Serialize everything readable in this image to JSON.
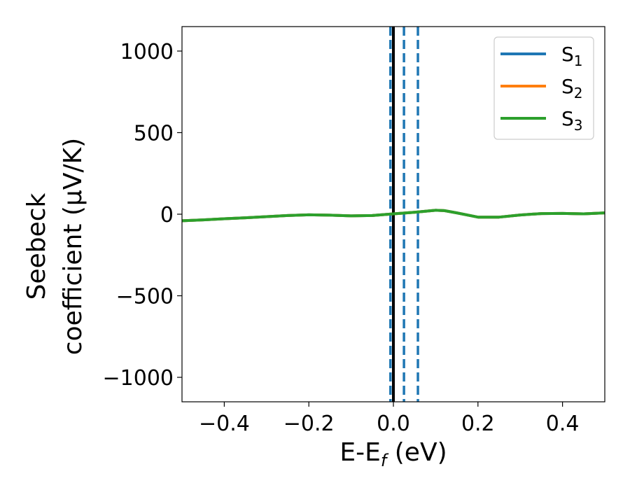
{
  "chart_data": {
    "type": "line",
    "title": "",
    "xlabel": "E-E_f (eV)",
    "xlabel_parts": {
      "main": "E-E",
      "sub": "f",
      "rest": " (eV)"
    },
    "ylabel": "Seebeck coefficient (μV/K)",
    "ylabel_lines": [
      "Seebeck",
      "coefficient  (μV/K)"
    ],
    "xlim": [
      -0.5,
      0.5
    ],
    "ylim": [
      -1150,
      1150
    ],
    "xticks": [
      -0.4,
      -0.2,
      0.0,
      0.2,
      0.4
    ],
    "xtick_labels": [
      "−0.4",
      "−0.2",
      "0.0",
      "0.2",
      "0.4"
    ],
    "yticks": [
      -1000,
      -500,
      0,
      500,
      1000
    ],
    "ytick_labels": [
      "−1000",
      "−500",
      "0",
      "500",
      "1000"
    ],
    "grid": false,
    "legend_position": "top-right",
    "series": [
      {
        "name": "S_1",
        "label_main": "S",
        "label_sub": "1",
        "color": "#1f77b4",
        "x": [
          -0.5,
          -0.45,
          -0.4,
          -0.35,
          -0.3,
          -0.25,
          -0.2,
          -0.15,
          -0.1,
          -0.05,
          0.0,
          0.05,
          0.1,
          0.12,
          0.15,
          0.2,
          0.25,
          0.3,
          0.35,
          0.4,
          0.45,
          0.5
        ],
        "y": [
          -40,
          -35,
          -28,
          -22,
          -15,
          -8,
          -4,
          -6,
          -10,
          -8,
          2,
          12,
          24,
          22,
          8,
          -18,
          -18,
          -5,
          4,
          5,
          2,
          8
        ]
      },
      {
        "name": "S_2",
        "label_main": "S",
        "label_sub": "2",
        "color": "#ff7f0e",
        "x": [
          -0.5,
          -0.45,
          -0.4,
          -0.35,
          -0.3,
          -0.25,
          -0.2,
          -0.15,
          -0.1,
          -0.05,
          0.0,
          0.05,
          0.1,
          0.12,
          0.15,
          0.2,
          0.25,
          0.3,
          0.35,
          0.4,
          0.45,
          0.5
        ],
        "y": [
          -40,
          -35,
          -28,
          -22,
          -15,
          -8,
          -4,
          -6,
          -10,
          -8,
          2,
          12,
          24,
          22,
          8,
          -18,
          -18,
          -5,
          4,
          5,
          2,
          8
        ]
      },
      {
        "name": "S_3",
        "label_main": "S",
        "label_sub": "3",
        "color": "#2ca02c",
        "x": [
          -0.5,
          -0.45,
          -0.4,
          -0.35,
          -0.3,
          -0.25,
          -0.2,
          -0.15,
          -0.1,
          -0.05,
          0.0,
          0.05,
          0.1,
          0.12,
          0.15,
          0.2,
          0.25,
          0.3,
          0.35,
          0.4,
          0.45,
          0.5
        ],
        "y": [
          -40,
          -35,
          -28,
          -22,
          -15,
          -8,
          -4,
          -6,
          -10,
          -8,
          2,
          12,
          24,
          22,
          8,
          -18,
          -18,
          -5,
          4,
          5,
          2,
          8
        ]
      }
    ],
    "vertical_lines": [
      {
        "x": 0.0,
        "style": "solid",
        "color": "#000000"
      },
      {
        "x": -0.007,
        "style": "dashed",
        "color": "#1f77b4"
      },
      {
        "x": 0.025,
        "style": "dashed",
        "color": "#1f77b4"
      },
      {
        "x": 0.058,
        "style": "dashed",
        "color": "#1f77b4"
      }
    ]
  }
}
